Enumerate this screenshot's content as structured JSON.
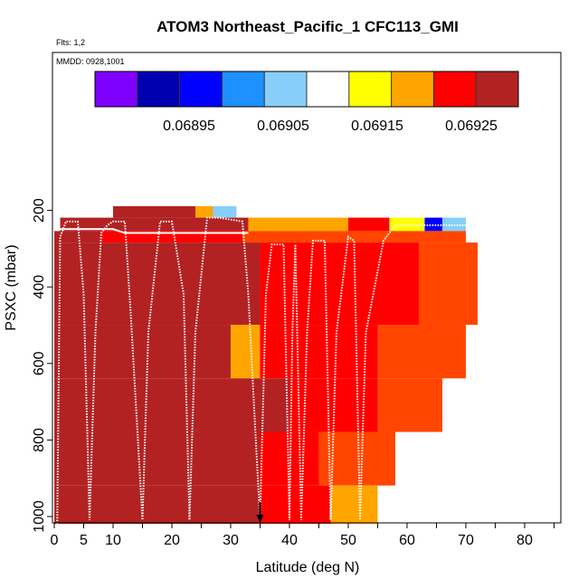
{
  "chart_data": {
    "type": "heatmap",
    "title": "ATOM3 Northeast_Pacific_1 CFC113_GMI",
    "notes": {
      "flights": "Flts: 1,2",
      "dates": "MMDD: 0928,1001"
    },
    "xlabel": "Latitude (deg N)",
    "ylabel": "PSXC (mbar)",
    "xlim": [
      0,
      85
    ],
    "ylim": [
      1000,
      0
    ],
    "x_ticks": [
      0,
      5,
      10,
      20,
      30,
      40,
      50,
      60,
      70,
      80
    ],
    "x_minor_ticks": [
      15,
      25,
      35,
      45,
      55,
      65,
      75,
      85
    ],
    "y_ticks": [
      200,
      400,
      600,
      800,
      1000
    ],
    "colorbar": {
      "colors": [
        "#7f00ff",
        "#0000b0",
        "#0000ff",
        "#1e90ff",
        "#87cefa",
        "#ffffff",
        "#ffff00",
        "#ffa500",
        "#ff0000",
        "#b22222"
      ],
      "tick_labels": [
        "0.06895",
        "0.06905",
        "0.06915",
        "0.06925"
      ],
      "tick_values": [
        0.06895,
        0.06905,
        0.06915,
        0.06925
      ],
      "range": [
        0.06885,
        0.0693
      ]
    },
    "marker": {
      "x": 35,
      "y": 1000,
      "label": "arrow"
    },
    "curtain": [
      {
        "row_top": 170,
        "row_bottom": 200,
        "segments": [
          [
            10,
            24,
            "#b22222"
          ],
          [
            24,
            27,
            "#ffa500"
          ],
          [
            27,
            31,
            "#87cefa"
          ],
          [
            31,
            33,
            "#ffffff"
          ]
        ]
      },
      {
        "row_top": 200,
        "row_bottom": 235,
        "segments": [
          [
            1,
            4,
            "#b22222"
          ],
          [
            4,
            10,
            "#b22222"
          ],
          [
            10,
            33,
            "#b22222"
          ],
          [
            33,
            50,
            "#ffa500"
          ],
          [
            50,
            57,
            "#ff0000"
          ],
          [
            57,
            63,
            "#ffff00"
          ],
          [
            63,
            66,
            "#0000ff"
          ],
          [
            66,
            70,
            "#87cefa"
          ]
        ]
      },
      {
        "row_top": 235,
        "row_bottom": 265,
        "segments": [
          [
            0,
            8,
            "#b22222"
          ],
          [
            8,
            32,
            "#ff0000"
          ],
          [
            32,
            70,
            "#ff4500"
          ]
        ]
      },
      {
        "row_top": 265,
        "row_bottom": 480,
        "segments": [
          [
            0,
            35,
            "#b22222"
          ],
          [
            35,
            62,
            "#ff0000"
          ],
          [
            62,
            72,
            "#ff4500"
          ]
        ]
      },
      {
        "row_top": 480,
        "row_bottom": 620,
        "segments": [
          [
            0,
            30,
            "#b22222"
          ],
          [
            30,
            35,
            "#ffa500"
          ],
          [
            35,
            55,
            "#ff0000"
          ],
          [
            55,
            70,
            "#ff4500"
          ]
        ]
      },
      {
        "row_top": 620,
        "row_bottom": 760,
        "segments": [
          [
            0,
            40,
            "#b22222"
          ],
          [
            40,
            55,
            "#ff0000"
          ],
          [
            55,
            66,
            "#ff4500"
          ]
        ]
      },
      {
        "row_top": 760,
        "row_bottom": 900,
        "segments": [
          [
            0,
            35,
            "#b22222"
          ],
          [
            35,
            45,
            "#ff0000"
          ],
          [
            45,
            58,
            "#ff4500"
          ]
        ]
      },
      {
        "row_top": 900,
        "row_bottom": 1000,
        "segments": [
          [
            0,
            35,
            "#b22222"
          ],
          [
            35,
            47,
            "#ff0000"
          ],
          [
            47,
            55,
            "#ffa500"
          ]
        ]
      }
    ],
    "flight_track": [
      [
        0.5,
        1000
      ],
      [
        1,
        250
      ],
      [
        2,
        210
      ],
      [
        4,
        210
      ],
      [
        5,
        400
      ],
      [
        6,
        990
      ],
      [
        7,
        500
      ],
      [
        8,
        240
      ],
      [
        9,
        220
      ],
      [
        10,
        210
      ],
      [
        12,
        210
      ],
      [
        13,
        450
      ],
      [
        15,
        990
      ],
      [
        16,
        500
      ],
      [
        18,
        210
      ],
      [
        20,
        210
      ],
      [
        22,
        400
      ],
      [
        23,
        990
      ],
      [
        24,
        500
      ],
      [
        26,
        200
      ],
      [
        28,
        200
      ],
      [
        32,
        210
      ],
      [
        33,
        400
      ],
      [
        34,
        700
      ],
      [
        35,
        990
      ],
      [
        36,
        400
      ],
      [
        37,
        270
      ],
      [
        39,
        270
      ],
      [
        40,
        990
      ],
      [
        40.5,
        500
      ],
      [
        41,
        270
      ],
      [
        42,
        990
      ],
      [
        43,
        500
      ],
      [
        44,
        260
      ],
      [
        46,
        260
      ],
      [
        47,
        990
      ],
      [
        48,
        500
      ],
      [
        50,
        250
      ],
      [
        51,
        260
      ],
      [
        52,
        990
      ],
      [
        53,
        500
      ],
      [
        56,
        260
      ],
      [
        58,
        220
      ],
      [
        62,
        220
      ],
      [
        70,
        220
      ]
    ],
    "upper_track": [
      [
        1,
        230
      ],
      [
        10,
        230
      ],
      [
        12,
        240
      ],
      [
        33,
        240
      ]
    ]
  }
}
